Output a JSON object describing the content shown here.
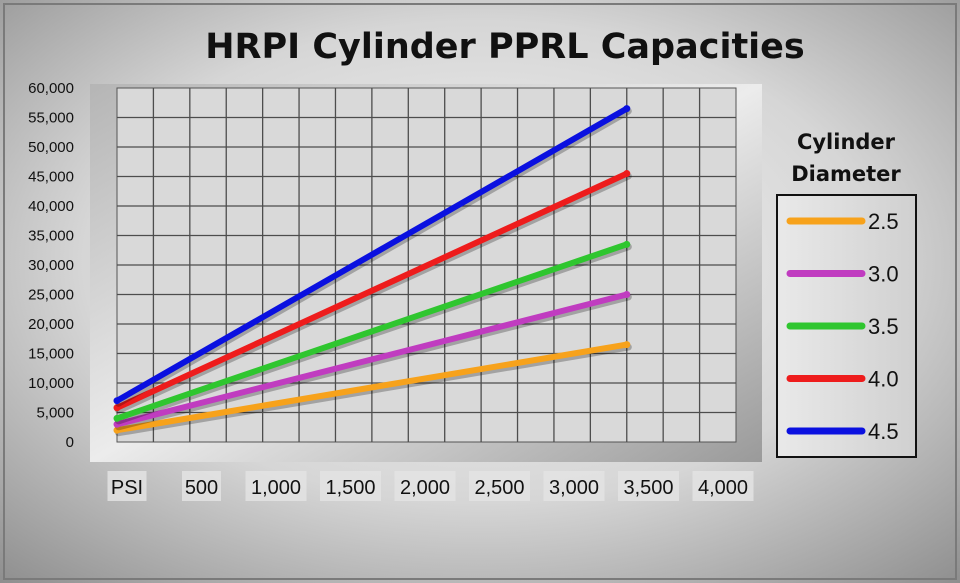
{
  "chart_data": {
    "type": "line",
    "title": "HRPI Cylinder PPRL Capacities",
    "xlabel": "",
    "ylabel": "",
    "x_tick_labels": [
      "PSI",
      "500",
      "1,000",
      "1,500",
      "2,000",
      "2,500",
      "3,000",
      "3,500",
      "4,000"
    ],
    "y_tick_labels": [
      "0",
      "5,000",
      "10,000",
      "15,000",
      "20,000",
      "25,000",
      "30,000",
      "35,000",
      "40,000",
      "45,000",
      "50,000",
      "55,000",
      "60,000"
    ],
    "xlim": [
      0,
      4250
    ],
    "ylim": [
      0,
      60000
    ],
    "grid": true,
    "legend_title": "Cylinder Diameter",
    "legend_position": "right",
    "x": [
      0,
      3500
    ],
    "series": [
      {
        "name": "2.5",
        "color": "#F7A21B",
        "values": [
          2000,
          16500
        ]
      },
      {
        "name": "3.0",
        "color": "#C03CC0",
        "values": [
          3000,
          25000
        ]
      },
      {
        "name": "3.5",
        "color": "#2FC62F",
        "values": [
          4000,
          33500
        ]
      },
      {
        "name": "4.0",
        "color": "#EE1C1C",
        "values": [
          5800,
          45500
        ]
      },
      {
        "name": "4.5",
        "color": "#0A10E0",
        "values": [
          7000,
          56500
        ]
      }
    ]
  }
}
